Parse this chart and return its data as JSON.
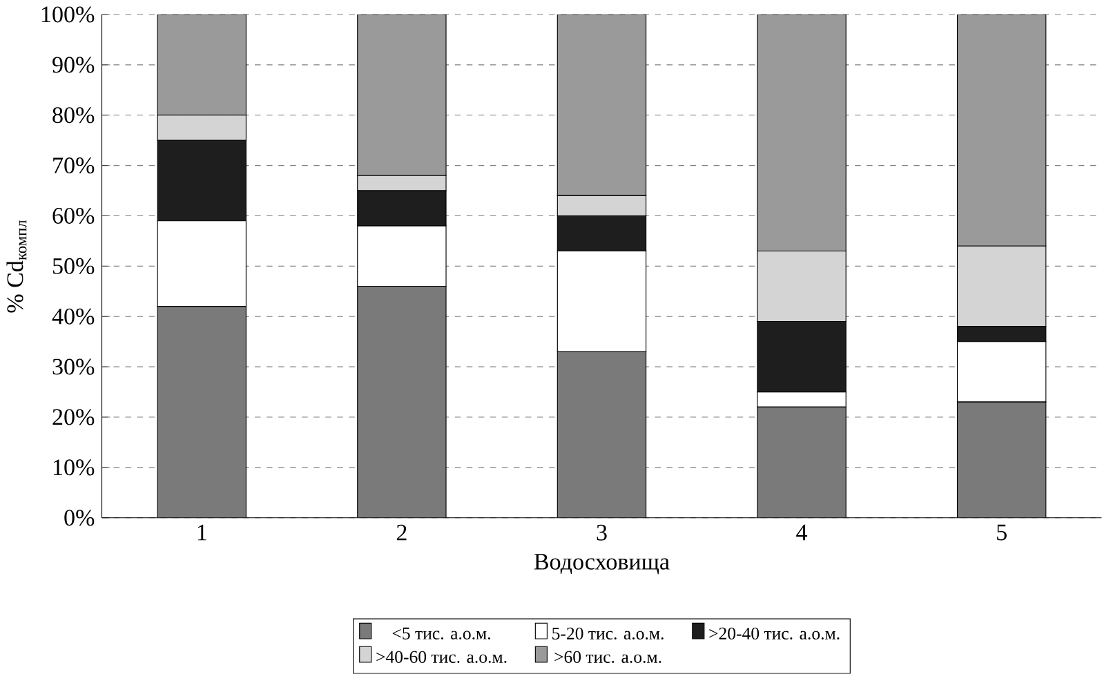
{
  "chart_data": {
    "type": "bar",
    "stacked": true,
    "xlabel": "Водосховища",
    "ylabel": "% Cd$_{компл}$",
    "categories": [
      "1",
      "2",
      "3",
      "4",
      "5"
    ],
    "ylim": [
      0,
      100
    ],
    "yticks": [
      {
        "value": 0,
        "label": "0%"
      },
      {
        "value": 10,
        "label": "10%"
      },
      {
        "value": 20,
        "label": "20%"
      },
      {
        "value": 30,
        "label": "30%"
      },
      {
        "value": 40,
        "label": "40%"
      },
      {
        "value": 50,
        "label": "50%"
      },
      {
        "value": 60,
        "label": "60%"
      },
      {
        "value": 70,
        "label": "70%"
      },
      {
        "value": 80,
        "label": "80%"
      },
      {
        "value": 90,
        "label": "90%"
      },
      {
        "value": 100,
        "label": "100%"
      }
    ],
    "grid": "y",
    "legend": "bottom",
    "series": [
      {
        "name": "<5 тис. а.о.м.",
        "color": "#7a7a7a",
        "values": [
          42,
          46,
          33,
          22,
          23
        ]
      },
      {
        "name": "5-20 тис. а.о.м.",
        "color": "#ffffff",
        "values": [
          17,
          12,
          20,
          3,
          12
        ]
      },
      {
        "name": ">20-40 тис. а.о.м.",
        "color": "#1e1e1e",
        "values": [
          16,
          7,
          7,
          14,
          3
        ]
      },
      {
        "name": ">40-60 тис. а.о.м.",
        "color": "#d4d4d4",
        "values": [
          5,
          3,
          4,
          14,
          16
        ]
      },
      {
        "name": ">60 тис. а.о.м.",
        "color": "#9a9a9a",
        "values": [
          20,
          32,
          36,
          47,
          46
        ]
      }
    ]
  }
}
